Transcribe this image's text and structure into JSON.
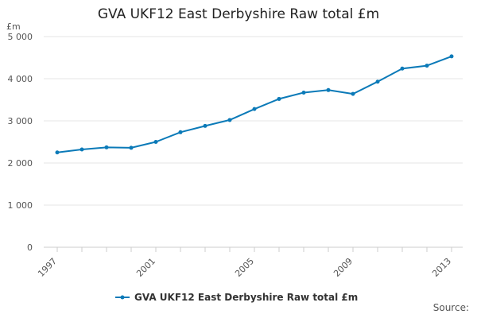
{
  "chart_data": {
    "type": "line",
    "title": "GVA UKF12 East Derbyshire Raw total £m",
    "unit_label": "£m",
    "x": [
      1997,
      1998,
      1999,
      2000,
      2001,
      2002,
      2003,
      2004,
      2005,
      2006,
      2007,
      2008,
      2009,
      2010,
      2011,
      2012,
      2013
    ],
    "x_tick_labels": [
      "1997",
      "2001",
      "2005",
      "2009",
      "2013"
    ],
    "y_tick_labels": [
      "0",
      "1 000",
      "2 000",
      "3 000",
      "4 000",
      "5 000"
    ],
    "ylim": [
      0,
      5000
    ],
    "grid": true,
    "legend_position": "bottom",
    "series": [
      {
        "name": "GVA UKF12 East Derbyshire Raw total £m",
        "color": "#0b7ab8",
        "values": [
          2250,
          2320,
          2370,
          2360,
          2500,
          2730,
          2880,
          3020,
          3280,
          3520,
          3670,
          3730,
          3640,
          3930,
          4240,
          4310,
          4530
        ]
      }
    ]
  },
  "source_label": "Source:"
}
